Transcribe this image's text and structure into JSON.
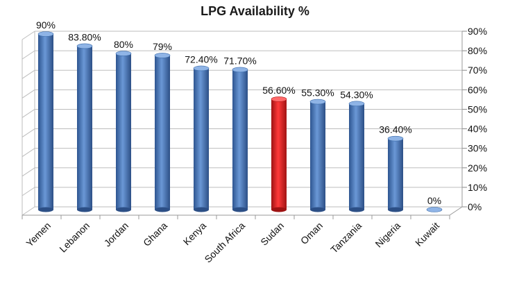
{
  "chart_data": {
    "type": "bar",
    "title": "LPG Availability %",
    "categories": [
      "Yemen",
      "Lebanon",
      "Jordan",
      "Ghana",
      "Kenya",
      "South Africa",
      "Sudan",
      "Oman",
      "Tanzania",
      "Nigeria",
      "Kuwait"
    ],
    "values": [
      90,
      83.8,
      80,
      79,
      72.4,
      71.7,
      56.6,
      55.3,
      54.3,
      36.4,
      0
    ],
    "data_labels": [
      "90%",
      "83.80%",
      "80%",
      "79%",
      "72.40%",
      "71.70%",
      "56.60%",
      "55.30%",
      "54.30%",
      "36.40%",
      "0%"
    ],
    "ylim": [
      0,
      90
    ],
    "yticks": [
      "0%",
      "10%",
      "20%",
      "30%",
      "40%",
      "50%",
      "60%",
      "70%",
      "80%",
      "90%"
    ],
    "y_axis_side": "right",
    "grid": true,
    "colors": {
      "default_bar": "#4a78b8",
      "highlight_bar": "#d42020",
      "grid": "#bdbdbd"
    },
    "highlight_index": 6
  }
}
